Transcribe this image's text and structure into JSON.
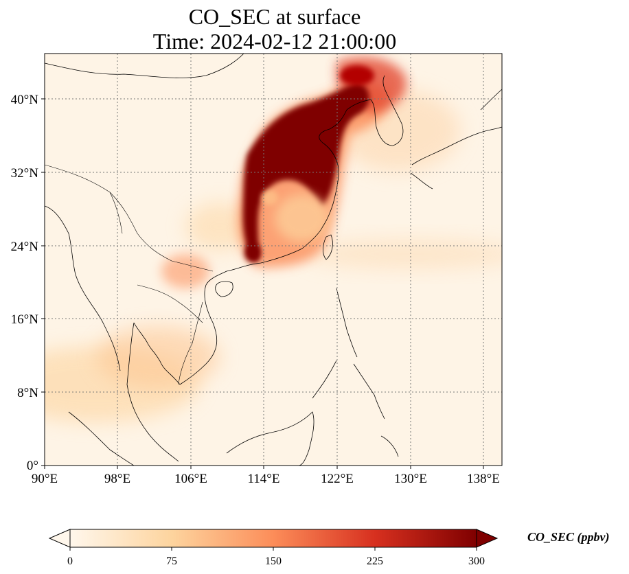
{
  "title": {
    "line1": "CO_SEC at surface",
    "line2": "Time: 2024-02-12 21:00:00"
  },
  "map": {
    "projection": "PlateCarree",
    "lon_range": [
      90,
      140
    ],
    "lat_range": [
      0,
      44
    ],
    "gridlines": true,
    "x_ticks": [
      "90°E",
      "98°E",
      "106°E",
      "114°E",
      "122°E",
      "130°E",
      "138°E"
    ],
    "y_ticks": [
      "0°",
      "8°N",
      "16°N",
      "24°N",
      "32°N",
      "40°N"
    ],
    "field_description": "High CO concentrations over eastern China plain and Korea, moderate plume over Indochina and Bay of Bengal",
    "colormap": "OrRd"
  },
  "colorbar": {
    "label": "CO_SEC (ppbv)",
    "range": [
      0,
      300
    ],
    "ticks": [
      "0",
      "75",
      "150",
      "225",
      "300"
    ],
    "extend": "both",
    "colors": [
      "#fff7ec",
      "#fdd49e",
      "#fc8d59",
      "#d7301f",
      "#7f0000"
    ]
  }
}
